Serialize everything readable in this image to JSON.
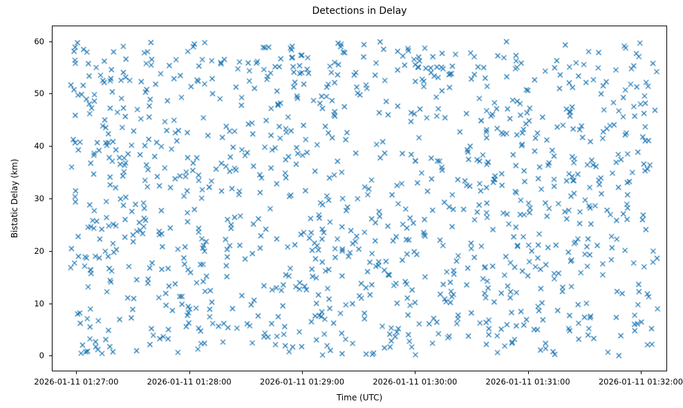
{
  "figure": {
    "background": "#ffffff"
  },
  "chart_data": {
    "type": "scatter",
    "title": "Detections in Delay",
    "xlabel": "Time (UTC)",
    "ylabel": "Bistatic Delay (km)",
    "marker": "x",
    "marker_color": "#1f77b4",
    "marker_size_px": 7,
    "marker_line_width": 1.3,
    "legend": "none",
    "grid": false,
    "x_tick_labels": [
      "2026-01-11 01:27:00",
      "2026-01-11 01:28:00",
      "2026-01-11 01:29:00",
      "2026-01-11 01:30:00",
      "2026-01-11 01:31:00",
      "2026-01-11 01:32:00"
    ],
    "x_tick_offsets_s": [
      0,
      60,
      120,
      180,
      240,
      300
    ],
    "xlim_s": [
      -13,
      314
    ],
    "y_ticks": [
      0,
      10,
      20,
      30,
      40,
      50,
      60
    ],
    "ylim": [
      -3,
      63
    ],
    "points": {
      "description": "Dense uniform random scatter of detections; reproduced with deterministic LCG generator",
      "distribution": "uniform",
      "seed": 20260111,
      "count": 1150,
      "x_range_s": [
        -3,
        309
      ],
      "y_range": [
        0,
        60
      ]
    }
  }
}
